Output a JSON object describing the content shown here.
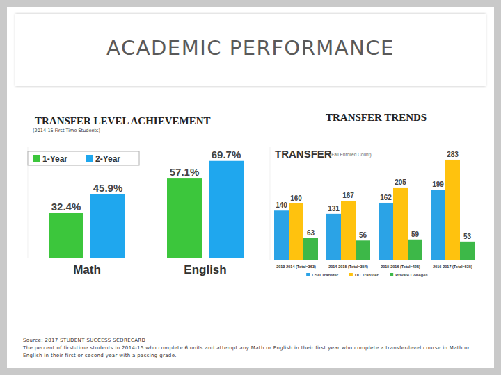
{
  "page": {
    "title": "ACADEMIC PERFORMANCE",
    "headings": [
      "TRANSFER LEVEL ACHIEVEMENT",
      "TRANSFER TRENDS"
    ],
    "subheading": "(2014-15 First Time Students)",
    "source": "Source: 2017 STUDENT SUCCESS SCORECARD",
    "note": "The percent of first-time students in 2014-15 who complete 6 units and attempt any Math or English in their first year who complete a transfer-level course in Math or English in their first or second year with a passing grade."
  },
  "chart_data": [
    {
      "type": "bar",
      "categories": [
        "Math",
        "English"
      ],
      "series": [
        {
          "name": "1-Year",
          "color": "#3cc63c",
          "values": [
            32.4,
            57.1
          ],
          "value_labels": [
            "32.4%",
            "57.1%"
          ]
        },
        {
          "name": "2-Year",
          "color": "#1fa7ee",
          "values": [
            45.9,
            69.7
          ],
          "value_labels": [
            "45.9%",
            "69.7%"
          ]
        }
      ],
      "ylim": [
        0,
        80
      ],
      "tick_labels": false,
      "legend": "top-left",
      "data_labels": true
    },
    {
      "type": "bar",
      "title": "TRANSFER",
      "subtitle": "(Fall Enrolled Count)",
      "categories": [
        "2013-2014 (Total=363)",
        "2014-2015 (Total=354)",
        "2015-2016 (Total=426)",
        "2016-2017 (Total=535)"
      ],
      "series": [
        {
          "name": "CSU Transfer",
          "color": "#2ba3e6",
          "values": [
            140,
            131,
            162,
            199
          ]
        },
        {
          "name": "UC Transfer",
          "color": "#ffc20e",
          "values": [
            160,
            167,
            205,
            283
          ]
        },
        {
          "name": "Private Colleges",
          "color": "#3db848",
          "values": [
            63,
            56,
            59,
            53
          ]
        }
      ],
      "ylim": [
        0,
        320
      ],
      "tick_labels": false,
      "legend": "bottom",
      "data_labels": true
    }
  ]
}
